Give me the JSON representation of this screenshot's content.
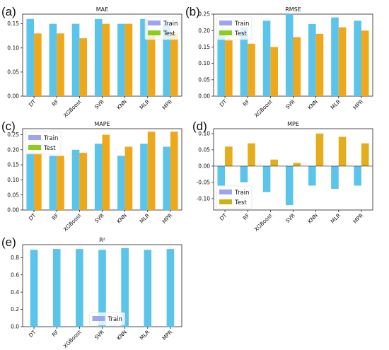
{
  "chart_data": [
    {
      "id": "a",
      "panel_label": "(a)",
      "type": "bar",
      "title": "MAE",
      "categories": [
        "DT",
        "RF",
        "XGBoost",
        "SVR",
        "KNN",
        "MLR",
        "MPR"
      ],
      "ylim": [
        0,
        0.17
      ],
      "yticks": [
        "0.00",
        "0.05",
        "0.10",
        "0.15"
      ],
      "ytick_values": [
        0,
        0.05,
        0.1,
        0.15
      ],
      "legend_position": "top-right",
      "series": [
        {
          "name": "Train",
          "color": "#5bc4ea",
          "legend_color": "#9da5ee",
          "values": [
            0.16,
            0.15,
            0.15,
            0.16,
            0.15,
            0.16,
            0.15
          ]
        },
        {
          "name": "Test",
          "color": "#f0a81b",
          "legend_color": "#8ccc1c",
          "values": [
            0.13,
            0.13,
            0.12,
            0.15,
            0.15,
            0.13,
            0.13
          ]
        }
      ]
    },
    {
      "id": "b",
      "panel_label": "(b)",
      "type": "bar",
      "title": "RMSE",
      "categories": [
        "DT",
        "RF",
        "XGBoost",
        "SVR",
        "KNN",
        "MLR",
        "MPR"
      ],
      "ylim": [
        0,
        0.25
      ],
      "yticks": [
        "0.00",
        "0.05",
        "0.10",
        "0.15",
        "0.20",
        "0.25"
      ],
      "ytick_values": [
        0,
        0.05,
        0.1,
        0.15,
        0.2,
        0.25
      ],
      "legend_position": "top-left",
      "series": [
        {
          "name": "Train",
          "color": "#5bc4ea",
          "legend_color": "#9da5ee",
          "values": [
            0.2,
            0.21,
            0.23,
            0.25,
            0.22,
            0.24,
            0.23
          ]
        },
        {
          "name": "Test",
          "color": "#f0a81b",
          "legend_color": "#8ccc1c",
          "values": [
            0.17,
            0.16,
            0.15,
            0.18,
            0.19,
            0.21,
            0.2
          ]
        }
      ]
    },
    {
      "id": "c",
      "panel_label": "(c)",
      "type": "bar",
      "title": "MAPE",
      "categories": [
        "DT",
        "RF",
        "XGBoost",
        "SVR",
        "KNN",
        "MLR",
        "MPR"
      ],
      "ylim": [
        0,
        0.27
      ],
      "yticks": [
        "0.00",
        "0.05",
        "0.10",
        "0.15",
        "0.20",
        "0.25"
      ],
      "ytick_values": [
        0,
        0.05,
        0.1,
        0.15,
        0.2,
        0.25
      ],
      "legend_position": "top-left",
      "series": [
        {
          "name": "Train",
          "color": "#5bc4ea",
          "legend_color": "#9da5ee",
          "values": [
            0.19,
            0.18,
            0.2,
            0.22,
            0.18,
            0.22,
            0.21
          ]
        },
        {
          "name": "Test",
          "color": "#f0a81b",
          "legend_color": "#8ccc1c",
          "values": [
            0.19,
            0.18,
            0.19,
            0.25,
            0.21,
            0.26,
            0.26
          ]
        }
      ]
    },
    {
      "id": "d",
      "panel_label": "(d)",
      "type": "bar",
      "title": "MPE",
      "categories": [
        "DT",
        "RF",
        "XGBoost",
        "SVR",
        "KNN",
        "MLR",
        "MPR"
      ],
      "ylim": [
        -0.135,
        0.115
      ],
      "yticks": [
        "-0.10",
        "-0.05",
        "0.00",
        "0.05",
        "0.10"
      ],
      "ytick_values": [
        -0.1,
        -0.05,
        0.0,
        0.05,
        0.1
      ],
      "legend_position": "bottom-left",
      "series": [
        {
          "name": "Train",
          "color": "#5bc4ea",
          "legend_color": "#9da5ee",
          "values": [
            -0.06,
            -0.05,
            -0.08,
            -0.12,
            -0.06,
            -0.07,
            -0.06
          ]
        },
        {
          "name": "Test",
          "color": "#e4ad1c",
          "legend_color": "#c8b414",
          "values": [
            0.06,
            0.07,
            0.02,
            0.01,
            0.1,
            0.09,
            0.07
          ]
        }
      ]
    },
    {
      "id": "e",
      "panel_label": "(e)",
      "type": "bar",
      "title": "R²",
      "categories": [
        "DT",
        "RF",
        "XGBoost",
        "SVR",
        "KNN",
        "MLR",
        "MPR"
      ],
      "ylim": [
        0,
        0.95
      ],
      "yticks": [
        "0.0",
        "0.2",
        "0.4",
        "0.6",
        "0.8"
      ],
      "ytick_values": [
        0,
        0.2,
        0.4,
        0.6,
        0.8
      ],
      "legend_position": "bottom-center",
      "series": [
        {
          "name": "Train",
          "color": "#5bc4ea",
          "legend_color": "#9da5ee",
          "values": [
            0.89,
            0.9,
            0.9,
            0.89,
            0.91,
            0.89,
            0.9
          ]
        }
      ]
    }
  ]
}
